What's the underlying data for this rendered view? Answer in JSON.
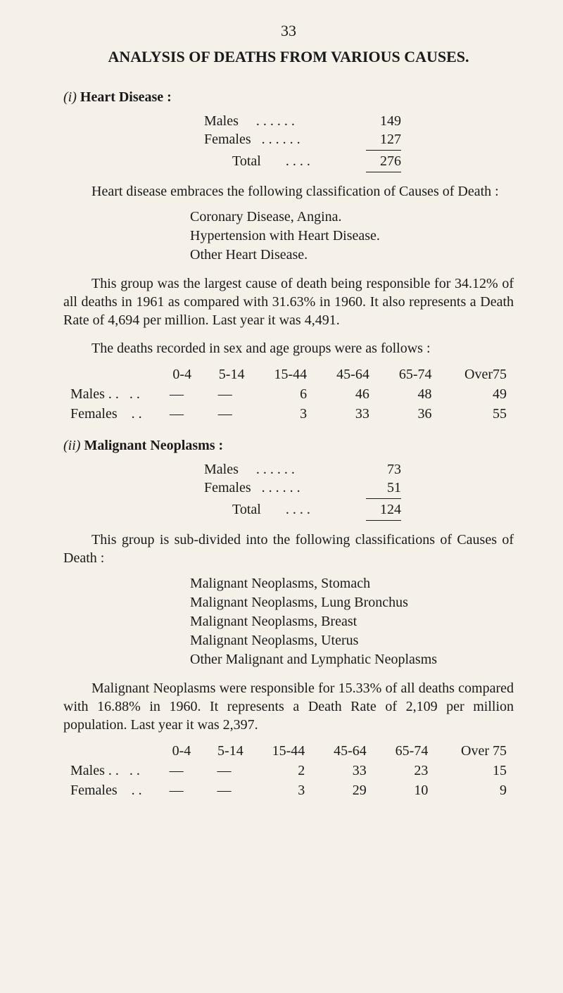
{
  "page_number": "33",
  "main_title": "ANALYSIS OF DEATHS FROM VARIOUS CAUSES.",
  "section_i": {
    "heading_roman": "(i)",
    "heading_label": "Heart Disease :",
    "tally": {
      "males_label": "Males",
      "males_dots": ". .      . .     . .",
      "males_value": "149",
      "females_label": "Females",
      "females_dots": ". .      . .     . .",
      "females_value": "127",
      "total_label": "Total",
      "total_dots": ". .     . .",
      "total_value": "276"
    },
    "para1": "Heart disease embraces the following classification of Causes of Death :",
    "list": {
      "a": "Coronary Disease, Angina.",
      "b": "Hypertension with Heart Disease.",
      "c": "Other Heart Disease."
    },
    "para2": "This group was the largest cause of death being responsible for 34.12% of all deaths in 1961 as compared with 31.63% in 1960. It also represents a Death Rate of 4,694 per million. Last year it was 4,491.",
    "para3": "The deaths recorded in sex and age groups were as follows :",
    "age_table": {
      "headers": [
        "0-4",
        "5-14",
        "15-44",
        "45-64",
        "65-74",
        "Over75"
      ],
      "rows": [
        {
          "label": "Males . .",
          "dots": ". .",
          "cells": [
            "—",
            "—",
            "6",
            "46",
            "48",
            "49"
          ]
        },
        {
          "label": "Females",
          "dots": ". .",
          "cells": [
            "—",
            "—",
            "3",
            "33",
            "36",
            "55"
          ]
        }
      ]
    }
  },
  "section_ii": {
    "heading_roman": "(ii)",
    "heading_label": "Malignant Neoplasms :",
    "tally": {
      "males_label": "Males",
      "males_dots": ". .      . .     . .",
      "males_value": "73",
      "females_label": "Females",
      "females_dots": ". .      . .     . .",
      "females_value": "51",
      "total_label": "Total",
      "total_dots": ". .     . .",
      "total_value": "124"
    },
    "para1": "This group is sub-divided into the following classifications of Causes of Death :",
    "list": {
      "a": "Malignant Neoplasms, Stomach",
      "b": "Malignant Neoplasms, Lung Bronchus",
      "c": "Malignant Neoplasms, Breast",
      "d": "Malignant Neoplasms, Uterus",
      "e": "Other Malignant and Lymphatic Neoplasms"
    },
    "para2": "Malignant Neoplasms were responsible for 15.33% of all deaths compared with 16.88% in 1960. It represents a Death Rate of 2,109 per million population. Last year it was 2,397.",
    "age_table": {
      "headers": [
        "0-4",
        "5-14",
        "15-44",
        "45-64",
        "65-74",
        "Over 75"
      ],
      "rows": [
        {
          "label": "Males . .",
          "dots": ". .",
          "cells": [
            "—",
            "—",
            "2",
            "33",
            "23",
            "15"
          ]
        },
        {
          "label": "Females",
          "dots": ". .",
          "cells": [
            "—",
            "—",
            "3",
            "29",
            "10",
            "9"
          ]
        }
      ]
    }
  }
}
